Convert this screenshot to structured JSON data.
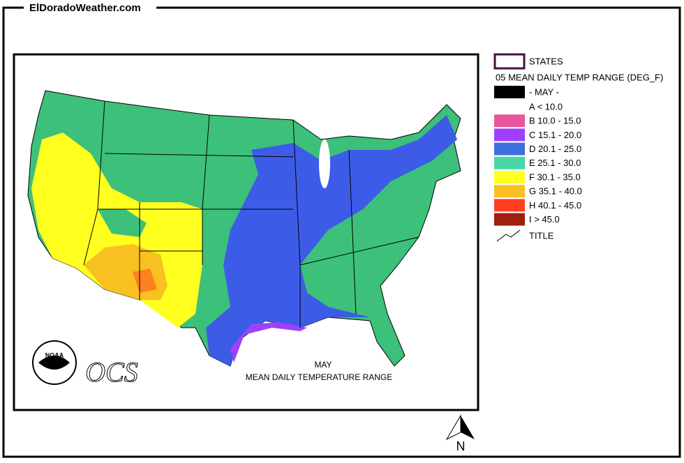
{
  "header": {
    "site": "ElDoradoWeather.com"
  },
  "map": {
    "title_month": "MAY",
    "title": "MEAN DAILY TEMPERATURE RANGE",
    "logo_text": "NOAA",
    "logo_ocs": "OCS",
    "north": "N"
  },
  "legend": {
    "states": "STATES",
    "layer": "05 MEAN DAILY TEMP RANGE (DEG_F)",
    "month": "- MAY -",
    "classes": [
      {
        "label": "A  < 10.0",
        "color": "#ffffff"
      },
      {
        "label": "B 10.0 - 15.0",
        "color": "#e8559a"
      },
      {
        "label": "C 15.1 - 20.0",
        "color": "#a040ff"
      },
      {
        "label": "D 20.1 - 25.0",
        "color": "#4070e0"
      },
      {
        "label": "E 25.1 - 30.0",
        "color": "#48d8a8"
      },
      {
        "label": "F 30.1 - 35.0",
        "color": "#ffff20"
      },
      {
        "label": "G 35.1 - 40.0",
        "color": "#f8c020"
      },
      {
        "label": "H 40.1 - 45.0",
        "color": "#ff4020"
      },
      {
        "label": "I  > 45.0",
        "color": "#a02010"
      }
    ],
    "title": "TITLE"
  }
}
